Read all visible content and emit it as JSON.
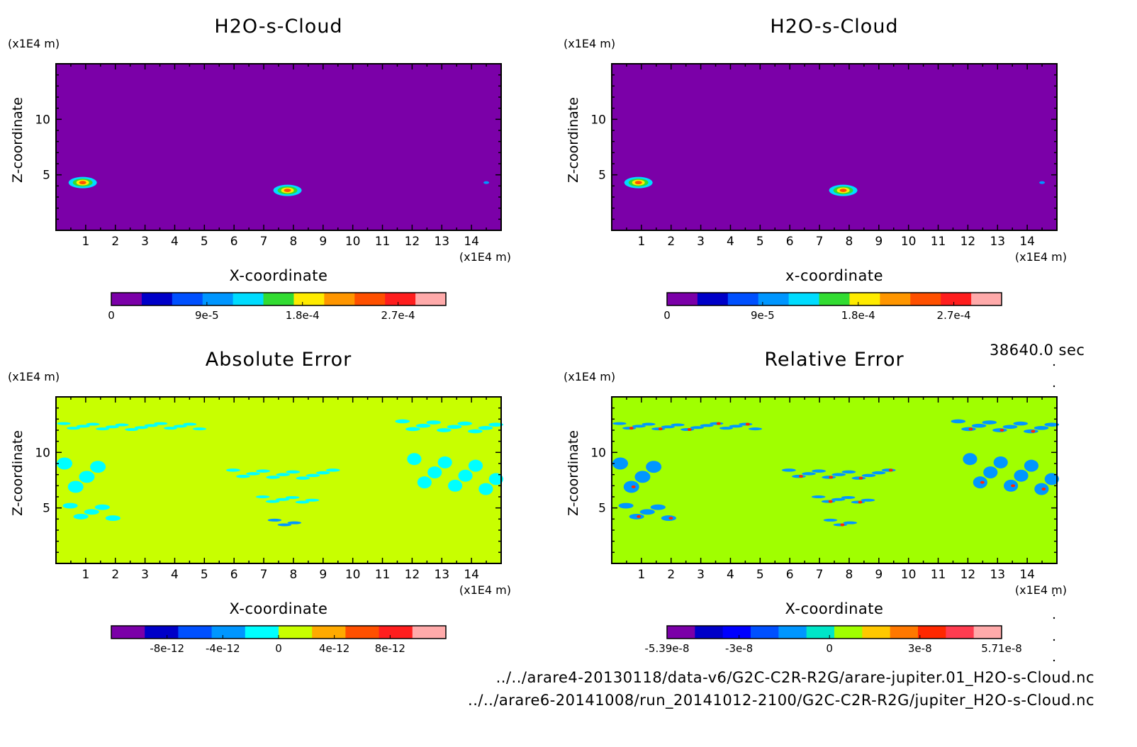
{
  "timestamp": "38640.0 sec",
  "footer": {
    "line1": "../../arare4-20130118/data-v6/G2C-C2R-R2G/arare-jupiter.01_H2O-s-Cloud.nc",
    "line2": "../../arare6-20141008/run_20141012-2100/G2C-C2R-R2G/jupiter_H2O-s-Cloud.nc"
  },
  "chart_data": [
    {
      "type": "heatmap",
      "title": "H2O-s-Cloud",
      "xlabel": "X-coordinate",
      "ylabel": "Z-coordinate",
      "x_unit": "(x1E4 m)",
      "y_unit": "(x1E4 m)",
      "xlim": [
        0,
        15
      ],
      "ylim": [
        0,
        15
      ],
      "x_ticks": [
        1,
        2,
        3,
        4,
        5,
        6,
        7,
        8,
        9,
        10,
        11,
        12,
        13,
        14
      ],
      "y_ticks": [
        5,
        10
      ],
      "background": "#7b00a8",
      "features": [
        {
          "x": 0.9,
          "z": 4.3,
          "value": 0.00025
        },
        {
          "x": 7.8,
          "z": 3.6,
          "value": 0.00024
        },
        {
          "x": 14.5,
          "z": 4.3,
          "value": 4e-05
        }
      ],
      "colorbar": {
        "colors": [
          "#7b00a8",
          "#0000c8",
          "#0050ff",
          "#0096ff",
          "#00dcff",
          "#32dc32",
          "#ffeb00",
          "#ff9600",
          "#ff5000",
          "#ff1e1e",
          "#ffaaaa"
        ],
        "tick_labels": [
          "0",
          "9e-5",
          "1.8e-4",
          "2.7e-4"
        ],
        "tick_values": [
          0,
          9e-05,
          0.00018,
          0.00027
        ],
        "range": [
          0,
          0.000315
        ]
      }
    },
    {
      "type": "heatmap",
      "title": "H2O-s-Cloud",
      "xlabel": "x-coordinate",
      "ylabel": "Z-coordinate",
      "x_unit": "(x1E4 m)",
      "y_unit": "(x1E4 m)",
      "xlim": [
        0,
        15
      ],
      "ylim": [
        0,
        15
      ],
      "x_ticks": [
        1,
        2,
        3,
        4,
        5,
        6,
        7,
        8,
        9,
        10,
        11,
        12,
        13,
        14
      ],
      "y_ticks": [
        5,
        10
      ],
      "background": "#7b00a8",
      "features": [
        {
          "x": 0.9,
          "z": 4.3,
          "value": 0.00025
        },
        {
          "x": 7.8,
          "z": 3.6,
          "value": 0.00024
        },
        {
          "x": 14.5,
          "z": 4.3,
          "value": 4e-05
        }
      ],
      "colorbar": {
        "colors": [
          "#7b00a8",
          "#0000c8",
          "#0050ff",
          "#0096ff",
          "#00dcff",
          "#32dc32",
          "#ffeb00",
          "#ff9600",
          "#ff5000",
          "#ff1e1e",
          "#ffaaaa"
        ],
        "tick_labels": [
          "0",
          "9e-5",
          "1.8e-4",
          "2.7e-4"
        ],
        "tick_values": [
          0,
          9e-05,
          0.00018,
          0.00027
        ],
        "range": [
          0,
          0.000315
        ]
      }
    },
    {
      "type": "heatmap",
      "title": "Absolute Error",
      "xlabel": "X-coordinate",
      "ylabel": "Z-coordinate",
      "x_unit": "(x1E4 m)",
      "y_unit": "(x1E4 m)",
      "xlim": [
        0,
        15
      ],
      "ylim": [
        0,
        15
      ],
      "x_ticks": [
        1,
        2,
        3,
        4,
        5,
        6,
        7,
        8,
        9,
        10,
        11,
        12,
        13,
        14
      ],
      "y_ticks": [
        5,
        10
      ],
      "background": "#c8ff00",
      "regions": [
        {
          "x": [
            0.1,
            5.0
          ],
          "z": [
            12.0,
            12.6
          ],
          "level": -1
        },
        {
          "x": [
            0.1,
            1.6
          ],
          "z": [
            6.0,
            9.0
          ],
          "level": -1
        },
        {
          "x": [
            0.3,
            2.1
          ],
          "z": [
            3.8,
            5.2
          ],
          "level": -1
        },
        {
          "x": [
            5.8,
            9.5
          ],
          "z": [
            7.6,
            8.4
          ],
          "level": -1
        },
        {
          "x": [
            6.8,
            8.8
          ],
          "z": [
            5.4,
            6.0
          ],
          "level": -1
        },
        {
          "x": [
            7.2,
            8.2
          ],
          "z": [
            3.3,
            3.9
          ],
          "level": -2
        },
        {
          "x": [
            11.5,
            15.0
          ],
          "z": [
            11.8,
            12.8
          ],
          "level": -1
        },
        {
          "x": [
            11.9,
            15.0
          ],
          "z": [
            6.4,
            9.4
          ],
          "level": -1
        }
      ],
      "colorbar": {
        "colors": [
          "#7b00a8",
          "#0000c8",
          "#0050ff",
          "#0096ff",
          "#00ffff",
          "#c8ff00",
          "#ffaa00",
          "#ff5000",
          "#ff1e1e",
          "#ffaaaa"
        ],
        "tick_labels": [
          "-8e-12",
          "-4e-12",
          "0",
          "4e-12",
          "8e-12"
        ],
        "tick_values": [
          -8e-12,
          -4e-12,
          0,
          4e-12,
          8e-12
        ],
        "range": [
          -1.2e-11,
          1.2e-11
        ]
      }
    },
    {
      "type": "heatmap",
      "title": "Relative Error",
      "xlabel": "X-coordinate",
      "ylabel": "Z-coordinate",
      "x_unit": "(x1E4 m)",
      "y_unit": "(x1E4 m)",
      "xlim": [
        0,
        15
      ],
      "ylim": [
        0,
        15
      ],
      "x_ticks": [
        1,
        2,
        3,
        4,
        5,
        6,
        7,
        8,
        9,
        10,
        11,
        12,
        13,
        14
      ],
      "y_ticks": [
        5,
        10
      ],
      "background": "#a0ff00",
      "regions": [
        {
          "x": [
            0.1,
            5.0
          ],
          "z": [
            12.0,
            12.6
          ],
          "level": -2
        },
        {
          "x": [
            0.1,
            1.6
          ],
          "z": [
            6.0,
            9.0
          ],
          "level": -2
        },
        {
          "x": [
            0.3,
            2.1
          ],
          "z": [
            3.8,
            5.2
          ],
          "level": -2
        },
        {
          "x": [
            5.8,
            9.5
          ],
          "z": [
            7.6,
            8.4
          ],
          "level": -2
        },
        {
          "x": [
            6.8,
            8.8
          ],
          "z": [
            5.4,
            6.0
          ],
          "level": -2
        },
        {
          "x": [
            7.2,
            8.2
          ],
          "z": [
            3.3,
            3.9
          ],
          "level": -2
        },
        {
          "x": [
            11.5,
            15.0
          ],
          "z": [
            11.8,
            12.8
          ],
          "level": -2
        },
        {
          "x": [
            11.9,
            15.0
          ],
          "z": [
            6.4,
            9.4
          ],
          "level": -2
        }
      ],
      "colorbar": {
        "colors": [
          "#7b00a8",
          "#0000c8",
          "#0000ff",
          "#0050ff",
          "#0096ff",
          "#00e6c8",
          "#a0ff00",
          "#ffc800",
          "#ff7800",
          "#ff2800",
          "#ff3c50",
          "#ffaaaa"
        ],
        "tick_labels": [
          "-5.39e-8",
          "-3e-8",
          "0",
          "3e-8",
          "5.71e-8"
        ],
        "tick_values": [
          -5.39e-08,
          -3e-08,
          0,
          3e-08,
          5.71e-08
        ],
        "range": [
          -5.39e-08,
          5.71e-08
        ]
      }
    }
  ]
}
